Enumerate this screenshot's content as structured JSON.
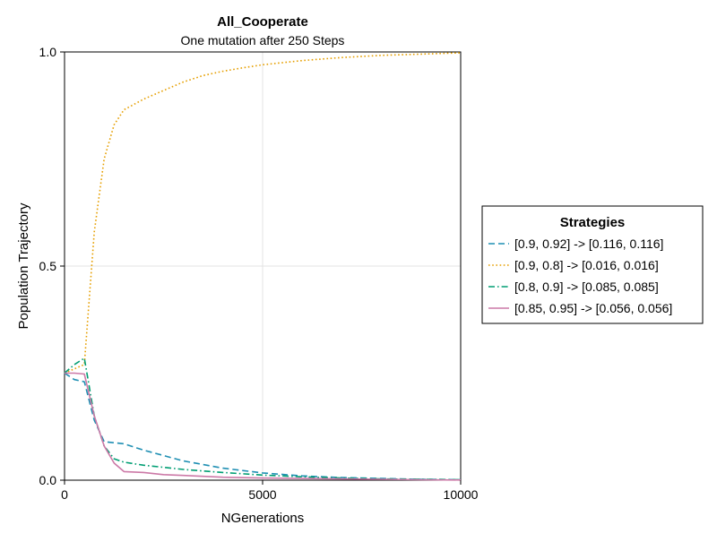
{
  "chart_data": {
    "type": "line",
    "title": "All_Cooperate",
    "subtitle": "One mutation after 250 Steps",
    "xlabel": "NGenerations",
    "ylabel": "Population Trajectory",
    "xlim": [
      0,
      10000
    ],
    "ylim": [
      0,
      1
    ],
    "xticks": [
      0,
      5000,
      10000
    ],
    "yticks": [
      0,
      0.5,
      1
    ],
    "xtick_labels": [
      "0",
      "5000",
      "10000"
    ],
    "ytick_labels": [
      "0.0",
      "0.5",
      "1.0"
    ],
    "grid": true,
    "legend_title": "Strategies",
    "legend_position": "right",
    "series": [
      {
        "name": "[0.9, 0.92] -> [0.116, 0.116]",
        "color": "#1f8fb3",
        "dash": "dashed",
        "x": [
          0,
          250,
          500,
          750,
          1000,
          1500,
          2000,
          3000,
          4000,
          5000,
          6000,
          7000,
          8000,
          9000,
          10000
        ],
        "y": [
          0.25,
          0.235,
          0.23,
          0.14,
          0.09,
          0.085,
          0.07,
          0.045,
          0.028,
          0.017,
          0.01,
          0.006,
          0.004,
          0.002,
          0.001
        ]
      },
      {
        "name": "[0.9, 0.8] -> [0.016, 0.016]",
        "color": "#e69f00",
        "dash": "dotted",
        "x": [
          0,
          250,
          500,
          750,
          1000,
          1250,
          1500,
          2000,
          2500,
          3000,
          3500,
          4000,
          4500,
          5000,
          6000,
          7000,
          8000,
          9000,
          10000
        ],
        "y": [
          0.25,
          0.26,
          0.27,
          0.58,
          0.75,
          0.83,
          0.865,
          0.89,
          0.91,
          0.93,
          0.945,
          0.955,
          0.963,
          0.97,
          0.98,
          0.987,
          0.992,
          0.995,
          0.998
        ]
      },
      {
        "name": "[0.8, 0.9] -> [0.085, 0.085]",
        "color": "#009e73",
        "dash": "dashdot",
        "x": [
          0,
          250,
          500,
          750,
          1000,
          1250,
          1500,
          2000,
          3000,
          4000,
          5000,
          6000,
          7000,
          8000,
          9000,
          10000
        ],
        "y": [
          0.25,
          0.27,
          0.285,
          0.15,
          0.08,
          0.05,
          0.042,
          0.035,
          0.025,
          0.018,
          0.012,
          0.008,
          0.005,
          0.003,
          0.002,
          0.001
        ]
      },
      {
        "name": "[0.85, 0.95] -> [0.056, 0.056]",
        "color": "#cc79a7",
        "dash": "solid",
        "x": [
          0,
          250,
          500,
          750,
          1000,
          1250,
          1500,
          2000,
          2500,
          3000,
          4000,
          5000,
          6000,
          7000,
          8000,
          9000,
          10000
        ],
        "y": [
          0.25,
          0.25,
          0.248,
          0.15,
          0.08,
          0.04,
          0.02,
          0.018,
          0.013,
          0.011,
          0.007,
          0.005,
          0.004,
          0.003,
          0.002,
          0.001,
          0.0005
        ]
      }
    ]
  }
}
